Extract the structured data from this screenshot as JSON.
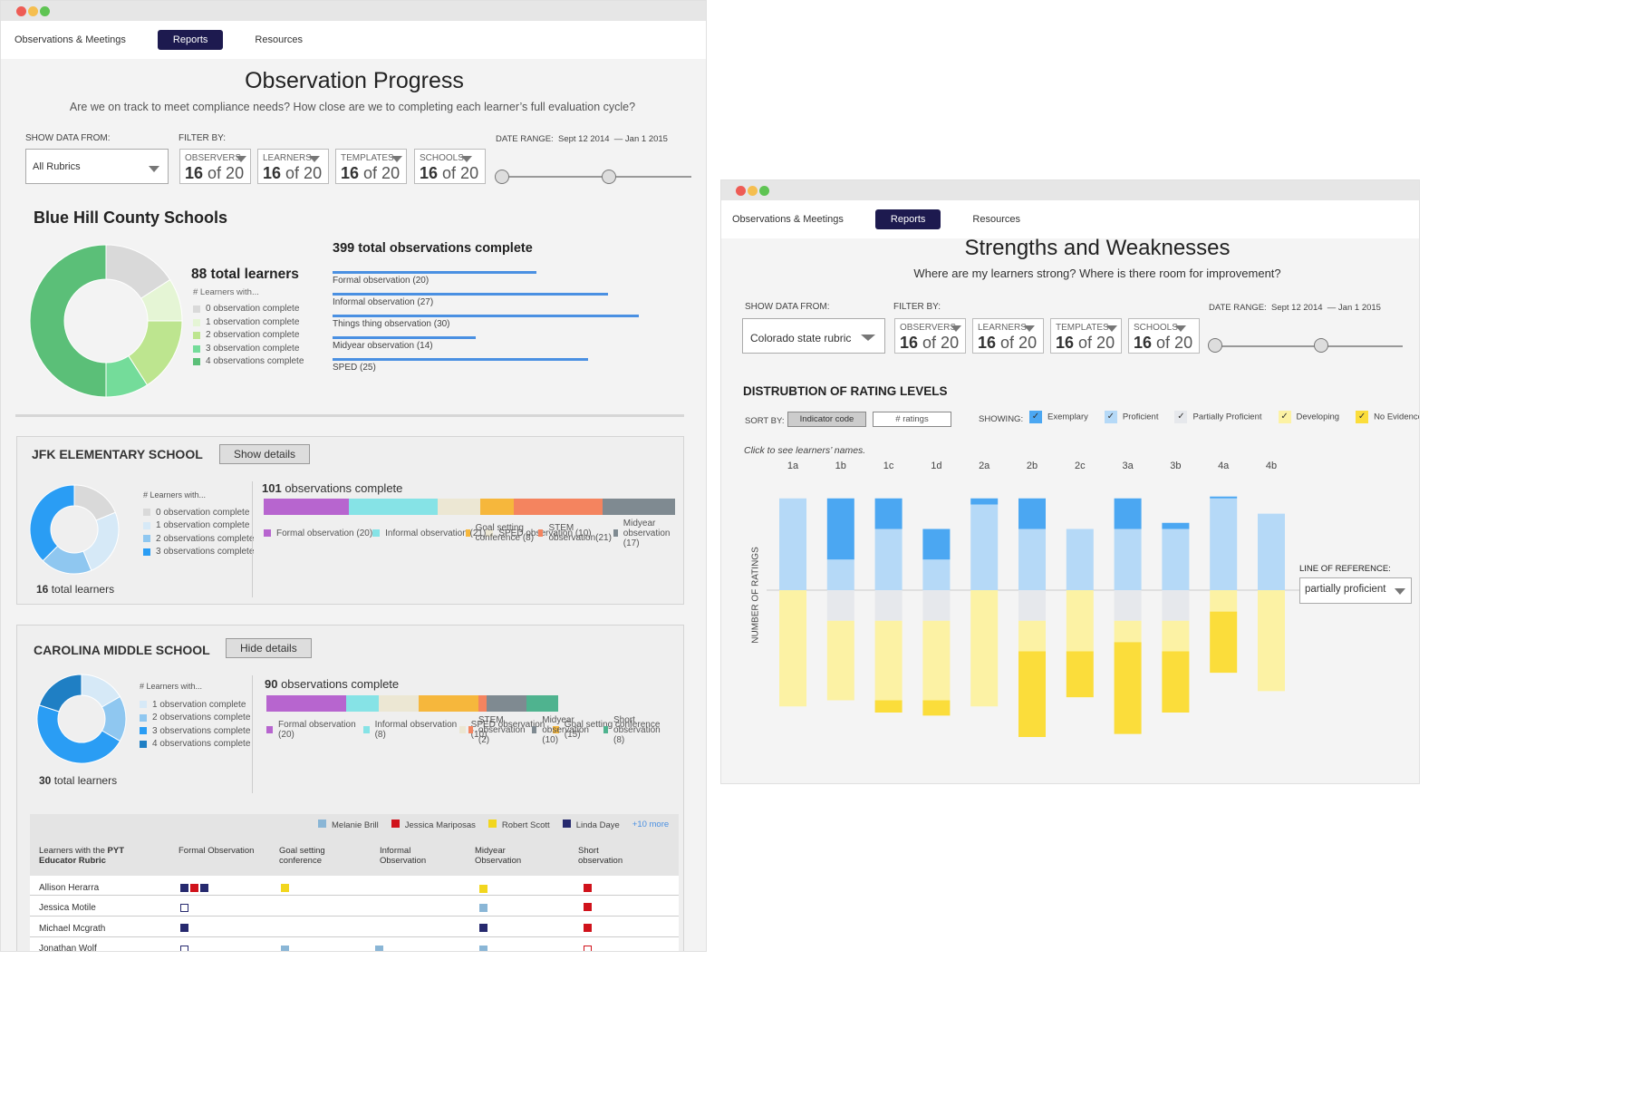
{
  "nav": {
    "tabs": [
      "Observations & Meetings",
      "Reports",
      "Resources"
    ],
    "active": "Reports"
  },
  "left": {
    "title": "Observation Progress",
    "subtitle": "Are we on track to meet compliance needs? How close are we to completing each learner’s full evaluation cycle?",
    "show_data_label": "SHOW DATA FROM:",
    "show_data_value": "All Rubrics",
    "filter_label": "FILTER BY:",
    "filters": [
      {
        "name": "OBSERVERS",
        "count": "16",
        "of": "of 20"
      },
      {
        "name": "LEARNERS",
        "count": "16",
        "of": "of 20"
      },
      {
        "name": "TEMPLATES",
        "count": "16",
        "of": "of 20"
      },
      {
        "name": "SCHOOLS",
        "count": "16",
        "of": "of 20"
      }
    ],
    "date_label": "DATE RANGE:",
    "date_from": "Sept 12 2014",
    "date_to": "— Jan 1 2015",
    "district": {
      "name": "Blue Hill County Schools",
      "total_learners": "88 total learners",
      "learners_with": "# Learners with...",
      "legend": [
        "0 observation complete",
        "1 observation complete",
        "2 observation complete",
        "3 observation complete",
        "4 observations complete"
      ],
      "legend_colors": [
        "#d9d9d9",
        "#e5f5d5",
        "#bde58f",
        "#74dc9a",
        "#5bbf78"
      ],
      "donut_values": [
        14,
        8,
        14,
        8,
        44
      ],
      "obs_total": "399 total observations complete",
      "obs": [
        {
          "label": "Formal observation (20)",
          "value": 20
        },
        {
          "label": "Informal observation (27)",
          "value": 27
        },
        {
          "label": "Things thing observation (30)",
          "value": 30
        },
        {
          "label": "Midyear observation (14)",
          "value": 14
        },
        {
          "label": "SPED (25)",
          "value": 25
        }
      ]
    },
    "jfk": {
      "name": "JFK ELEMENTARY SCHOOL",
      "button": "Show details",
      "learners_with": "# Learners with...",
      "legend": [
        "0 observation complete",
        "1 observation complete",
        "2 observations complete",
        "3 observations complete"
      ],
      "legend_colors": [
        "#d9d9d9",
        "#d6e9f7",
        "#8fc7f0",
        "#2a9df4"
      ],
      "donut_values": [
        3,
        4,
        3,
        6
      ],
      "total_num": "16",
      "total_text": " total learners",
      "obs_num": "101",
      "obs_text": " observations complete",
      "bar": [
        {
          "label": "Formal observation (20)",
          "value": 20,
          "color": "#b765cf"
        },
        {
          "label": "Informal observation (21)",
          "value": 21,
          "color": "#86e3e6"
        },
        {
          "label": "SPED observation (10)",
          "value": 10,
          "color": "#ece7d3"
        },
        {
          "label": "Goal setting conference (8)",
          "value": 8,
          "color": "#f6b73c"
        },
        {
          "label": "STEM observation(21)",
          "value": 21,
          "color": "#f4845f"
        },
        {
          "label": "Midyear observation (17)",
          "value": 17,
          "color": "#7f8a91"
        }
      ]
    },
    "carolina": {
      "name": "CAROLINA MIDDLE SCHOOL",
      "button": "Hide details",
      "learners_with": "# Learners with...",
      "legend": [
        "1 observation complete",
        "2 observations complete",
        "3 observations complete",
        "4 observations complete"
      ],
      "legend_colors": [
        "#d6e9f7",
        "#8fc7f0",
        "#2a9df4",
        "#1f7fc4"
      ],
      "donut_values": [
        5,
        5,
        14,
        6
      ],
      "total_num": "30",
      "total_text": " total learners",
      "obs_num": "90",
      "obs_text": " observations complete",
      "bar": [
        {
          "label": "Formal observation (20)",
          "value": 20,
          "color": "#b765cf"
        },
        {
          "label": "Informal observation (8)",
          "value": 8,
          "color": "#86e3e6"
        },
        {
          "label": "SPED observation (10)",
          "value": 10,
          "color": "#ece7d3"
        },
        {
          "label": "Goal setting conference (15)",
          "value": 15,
          "color": "#f6b73c"
        },
        {
          "label": "STEM observation (2)",
          "value": 2,
          "color": "#f4845f"
        },
        {
          "label": "Midyear observation (10)",
          "value": 10,
          "color": "#7f8a91"
        },
        {
          "label": "Short observation (8)",
          "value": 8,
          "color": "#4fb38f"
        }
      ],
      "observers": [
        {
          "name": "Melanie Brill",
          "color": "#8ab6d6"
        },
        {
          "name": "Jessica Mariposas",
          "color": "#d0121b"
        },
        {
          "name": "Robert Scott",
          "color": "#f2d61e"
        },
        {
          "name": "Linda Daye",
          "color": "#26296e"
        }
      ],
      "more": "+10 more",
      "table_head_pre": "Learners with the ",
      "table_head_bold": "PYT",
      "table_head_line2": "Educator Rubric",
      "columns": [
        "Formal Observation",
        "Goal setting conference",
        "Informal Observation",
        "Midyear Observation",
        "Short observation"
      ],
      "rows": [
        "Allison Herarra",
        "Jessica Motile",
        "Michael Mcgrath",
        "Jonathan Wolf"
      ]
    }
  },
  "right": {
    "title": "Strengths and Weaknesses",
    "subtitle": "Where are my learners strong? Where is there room for improvement?",
    "show_data_label": "SHOW DATA FROM:",
    "show_data_value": "Colorado state rubric",
    "filter_label": "FILTER BY:",
    "date_label": "DATE RANGE:",
    "date_from": "Sept 12 2014",
    "date_to": "— Jan 1 2015",
    "section": "DISTRUBTION OF RATING LEVELS",
    "sort_label": "SORT  BY:",
    "sort_a": "Indicator code",
    "sort_b": "# ratings",
    "showing_label": "SHOWING:",
    "levels": [
      {
        "name": "Exemplary",
        "color": "#4ba7f2"
      },
      {
        "name": "Proficient",
        "color": "#b5d9f7"
      },
      {
        "name": "Partially Proficient",
        "color": "#e6e8ec"
      },
      {
        "name": "Developing",
        "color": "#fcf2a4"
      },
      {
        "name": "No Evidence",
        "color": "#fbdd3b"
      }
    ],
    "hint": "Click  to  see  learners’ names.",
    "ylabel": "NUMBER OF RATINGS",
    "ref_label": "LINE OF REFERENCE:",
    "ref_value": "partially proficient"
  },
  "chart_data": {
    "type": "bar",
    "categories": [
      "1a",
      "1b",
      "1c",
      "1d",
      "2a",
      "2b",
      "2c",
      "3a",
      "3b",
      "4a",
      "4b"
    ],
    "series": [
      {
        "name": "Exemplary",
        "values": [
          0,
          10,
          5,
          5,
          1,
          5,
          0,
          5,
          1,
          0.3,
          0
        ]
      },
      {
        "name": "Proficient",
        "values": [
          15,
          5,
          10,
          5,
          14,
          10,
          10,
          10,
          10,
          15,
          12.5
        ]
      },
      {
        "name": "Partially Proficient",
        "values": [
          0,
          5,
          5,
          5,
          0,
          5,
          0,
          5,
          5,
          0,
          0
        ]
      },
      {
        "name": "Developing",
        "values": [
          19,
          13,
          13,
          13,
          19,
          5,
          10,
          3.5,
          5,
          3.5,
          16.5
        ]
      },
      {
        "name": "No Evidence",
        "values": [
          0,
          0,
          2,
          2.5,
          0,
          14,
          7.5,
          15,
          10,
          10,
          0
        ]
      }
    ]
  }
}
